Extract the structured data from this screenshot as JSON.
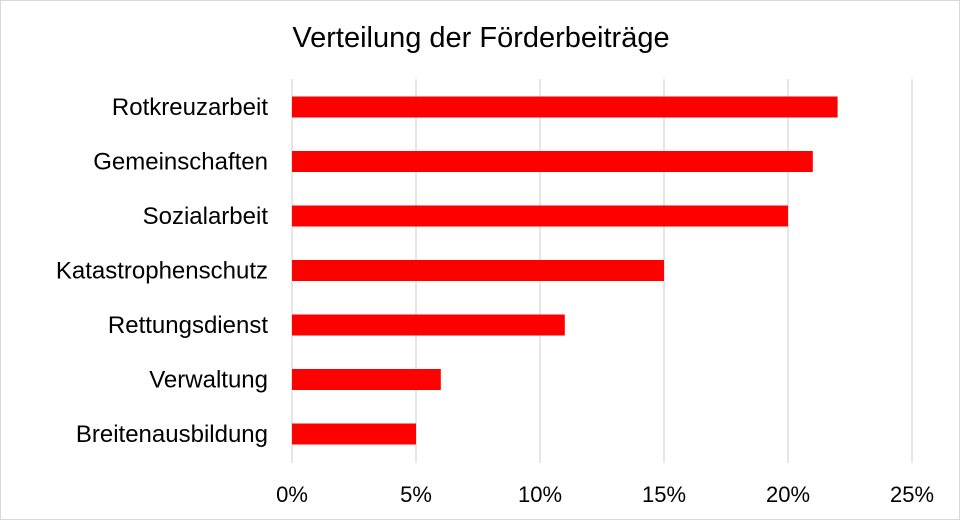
{
  "chart_data": {
    "type": "bar",
    "orientation": "horizontal",
    "title": "Verteilung der Förderbeiträge",
    "xlabel": "",
    "ylabel": "",
    "categories": [
      "Rotkreuzarbeit",
      "Gemeinschaften",
      "Sozialarbeit",
      "Katastrophenschutz",
      "Rettungsdienst",
      "Verwaltung",
      "Breitenausbildung"
    ],
    "values": [
      22,
      21,
      20,
      15,
      11,
      6,
      5
    ],
    "value_unit": "%",
    "xlim": [
      0,
      25
    ],
    "xticks": [
      0,
      5,
      10,
      15,
      20,
      25
    ],
    "xtick_labels": [
      "0%",
      "5%",
      "10%",
      "15%",
      "20%",
      "25%"
    ],
    "grid": "vertical",
    "legend": "none",
    "bar_color": "#ff0000",
    "grid_color": "#d9d9d9"
  }
}
